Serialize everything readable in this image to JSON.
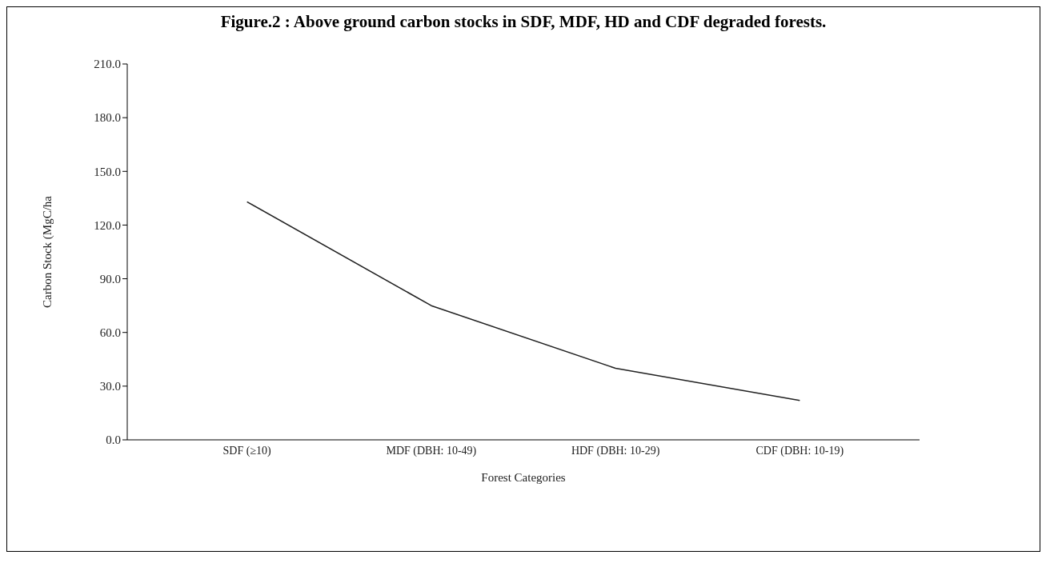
{
  "chart_data": {
    "type": "line",
    "title": "Figure.2 : Above ground carbon stocks in SDF, MDF, HD and CDF degraded forests.",
    "xlabel": "Forest Categories",
    "ylabel": "Carbon Stock (MgC/ha",
    "categories": [
      "SDF (≥10)",
      "MDF (DBH: 10-49)",
      "HDF (DBH: 10-29)",
      "CDF (DBH: 10-19)"
    ],
    "series": [
      {
        "color": "#222222",
        "values": [
          133,
          75,
          40,
          22
        ]
      }
    ],
    "ylim": [
      0,
      210
    ],
    "yticks": [
      {
        "value": 0,
        "label": "0.0"
      },
      {
        "value": 30,
        "label": "30.0"
      },
      {
        "value": 60,
        "label": "60.0"
      },
      {
        "value": 90,
        "label": "90.0"
      },
      {
        "value": 120,
        "label": "120.0"
      },
      {
        "value": 150,
        "label": "150.0"
      },
      {
        "value": 180,
        "label": "180.0"
      },
      {
        "value": 210,
        "label": "210.0"
      }
    ],
    "grid": false,
    "legend": false,
    "marker": "none",
    "line_style": "solid"
  }
}
